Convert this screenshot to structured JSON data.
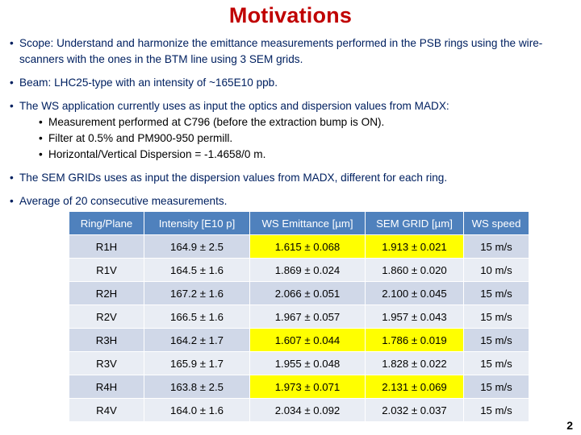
{
  "title": "Motivations",
  "bullets": {
    "b1_label": "Scope:",
    "b1_text": " Understand and harmonize the emittance measurements performed in the PSB rings using the wire-scanners with the ones in the BTM line using 3 SEM grids.",
    "b2": "Beam: LHC25-type with an intensity of ~165E10 ppb.",
    "b3": "The WS application currently uses as input the optics and dispersion values from MADX:",
    "b3_subs": [
      "Measurement performed at C796 (before the extraction bump is ON).",
      "Filter at 0.5% and PM900-950 permill.",
      "Horizontal/Vertical Dispersion = -1.4658/0 m."
    ],
    "b4": "The SEM GRIDs uses as input the dispersion values from MADX, different for each ring.",
    "b5": "Average of 20 consecutive measurements."
  },
  "table": {
    "headers": [
      "Ring/Plane",
      "Intensity [E10 p]",
      "WS Emittance [µm]",
      "SEM GRID [µm]",
      "WS speed"
    ],
    "rows": [
      [
        "R1H",
        "164.9 ± 2.5",
        "1.615 ± 0.068",
        "1.913 ± 0.021",
        "15 m/s"
      ],
      [
        "R1V",
        "164.5 ± 1.6",
        "1.869 ± 0.024",
        "1.860 ± 0.020",
        "10 m/s"
      ],
      [
        "R2H",
        "167.2 ± 1.6",
        "2.066 ± 0.051",
        "2.100 ± 0.045",
        "15 m/s"
      ],
      [
        "R2V",
        "166.5 ± 1.6",
        "1.967 ± 0.057",
        "1.957 ± 0.043",
        "15 m/s"
      ],
      [
        "R3H",
        "164.2 ± 1.7",
        "1.607 ± 0.044",
        "1.786 ± 0.019",
        "15 m/s"
      ],
      [
        "R3V",
        "165.9 ± 1.7",
        "1.955 ± 0.048",
        "1.828 ± 0.022",
        "15 m/s"
      ],
      [
        "R4H",
        "163.8 ± 2.5",
        "1.973 ± 0.071",
        "2.131 ± 0.069",
        "15 m/s"
      ],
      [
        "R4V",
        "164.0 ± 1.6",
        "2.034 ± 0.092",
        "2.032 ± 0.037",
        "15 m/s"
      ]
    ],
    "highlight_color": "#ffff00"
  },
  "page_number": "2"
}
